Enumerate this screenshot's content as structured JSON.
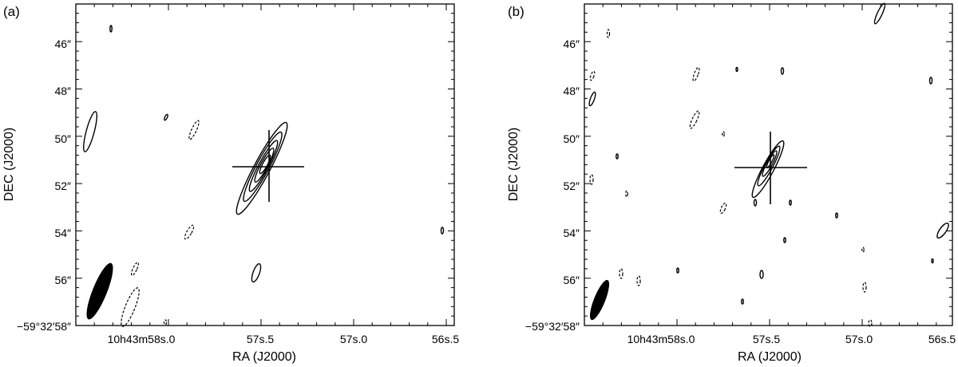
{
  "chart_data": [
    {
      "type": "contour",
      "panel_label": "(a)",
      "xlabel": "RA (J2000)",
      "ylabel": "DEC (J2000)",
      "x_ticks": [
        {
          "value": 58.0,
          "label": "10h43m58s.0"
        },
        {
          "value": 57.5,
          "label": "57s.5"
        },
        {
          "value": 57.0,
          "label": "57s.0"
        },
        {
          "value": 56.5,
          "label": "56s.5"
        }
      ],
      "y_ticks": [
        {
          "value": 46,
          "label": "46″"
        },
        {
          "value": 48,
          "label": "48″"
        },
        {
          "value": 50,
          "label": "50″"
        },
        {
          "value": 52,
          "label": "52″"
        },
        {
          "value": 54,
          "label": "54″"
        },
        {
          "value": 56,
          "label": "56″"
        },
        {
          "value": 58,
          "label": "−59°32′58″"
        }
      ],
      "xlim": [
        58.31,
        56.45
      ],
      "ylim": [
        58.1,
        44.55
      ],
      "source_cross": {
        "ra": 57.47,
        "dec": 51.3
      },
      "grid": false
    },
    {
      "type": "contour",
      "panel_label": "(b)",
      "xlabel": "RA (J2000)",
      "ylabel": "DEC (J2000)",
      "x_ticks": [
        {
          "value": 58.0,
          "label": "10h43m58s.0"
        },
        {
          "value": 57.5,
          "label": "57s.5"
        },
        {
          "value": 57.0,
          "label": "57s.0"
        },
        {
          "value": 56.5,
          "label": "56s.5"
        }
      ],
      "y_ticks": [
        {
          "value": 46,
          "label": "46″"
        },
        {
          "value": 48,
          "label": "48″"
        },
        {
          "value": 50,
          "label": "50″"
        },
        {
          "value": 52,
          "label": "52″"
        },
        {
          "value": 54,
          "label": "54″"
        },
        {
          "value": 56,
          "label": "56″"
        },
        {
          "value": 58,
          "label": "−59°32′58″"
        }
      ],
      "xlim": [
        58.31,
        56.45
      ],
      "ylim": [
        58.1,
        44.55
      ],
      "source_cross": {
        "ra": 57.47,
        "dec": 51.3
      },
      "grid": false
    }
  ]
}
